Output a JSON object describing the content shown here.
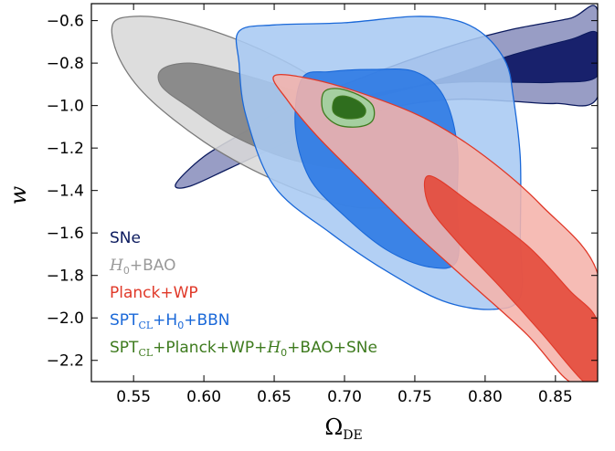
{
  "chart_data": {
    "type": "contour",
    "title": "",
    "xlabel": "Ω",
    "xlabel_sub": "DE",
    "ylabel": "w",
    "xlim": [
      0.52,
      0.88
    ],
    "ylim": [
      -2.3,
      -0.52
    ],
    "x_ticks": [
      0.55,
      0.6,
      0.65,
      0.7,
      0.75,
      0.8,
      0.85
    ],
    "x_tick_labels": [
      "0.55",
      "0.60",
      "0.65",
      "0.70",
      "0.75",
      "0.80",
      "0.85"
    ],
    "y_ticks": [
      -0.6,
      -0.8,
      -1.0,
      -1.2,
      -1.4,
      -1.6,
      -1.8,
      -2.0,
      -2.2
    ],
    "y_tick_labels": [
      "−0.6",
      "−0.8",
      "−1.0",
      "−1.2",
      "−1.4",
      "−1.6",
      "−1.8",
      "−2.0",
      "−2.2"
    ],
    "grid": false,
    "legend_position": "bottom-left",
    "series": [
      {
        "name": "SNe",
        "color": "#0b1a5e",
        "fill_outer": "#8a90bd",
        "fill_inner": "#061060",
        "outer": [
          [
            0.58,
            -1.37
          ],
          [
            0.6,
            -1.24
          ],
          [
            0.63,
            -1.12
          ],
          [
            0.66,
            -1.0
          ],
          [
            0.7,
            -0.9
          ],
          [
            0.74,
            -0.8
          ],
          [
            0.78,
            -0.71
          ],
          [
            0.82,
            -0.64
          ],
          [
            0.86,
            -0.59
          ],
          [
            0.88,
            -0.55
          ],
          [
            0.88,
            -0.96
          ],
          [
            0.85,
            -0.99
          ],
          [
            0.82,
            -0.98
          ],
          [
            0.78,
            -0.97
          ],
          [
            0.74,
            -1.0
          ],
          [
            0.7,
            -1.07
          ],
          [
            0.66,
            -1.17
          ],
          [
            0.62,
            -1.29
          ],
          [
            0.59,
            -1.38
          ]
        ],
        "inner": [
          [
            0.67,
            -1.05
          ],
          [
            0.7,
            -0.99
          ],
          [
            0.74,
            -0.93
          ],
          [
            0.78,
            -0.85
          ],
          [
            0.82,
            -0.76
          ],
          [
            0.86,
            -0.69
          ],
          [
            0.88,
            -0.66
          ],
          [
            0.88,
            -0.86
          ],
          [
            0.85,
            -0.89
          ],
          [
            0.82,
            -0.89
          ],
          [
            0.78,
            -0.89
          ],
          [
            0.74,
            -0.92
          ],
          [
            0.7,
            -0.98
          ],
          [
            0.67,
            -1.05
          ]
        ]
      },
      {
        "name": "H0+BAO",
        "label_parts": [
          "H",
          "0",
          "+BAO"
        ],
        "color": "#7a7a7a",
        "fill_outer": "#d8d8d8",
        "fill_inner": "#808080",
        "outer": [
          [
            0.535,
            -0.62
          ],
          [
            0.55,
            -0.58
          ],
          [
            0.58,
            -0.6
          ],
          [
            0.62,
            -0.68
          ],
          [
            0.66,
            -0.8
          ],
          [
            0.7,
            -0.96
          ],
          [
            0.73,
            -1.1
          ],
          [
            0.755,
            -1.25
          ],
          [
            0.755,
            -1.4
          ],
          [
            0.74,
            -1.47
          ],
          [
            0.71,
            -1.48
          ],
          [
            0.68,
            -1.43
          ],
          [
            0.64,
            -1.32
          ],
          [
            0.6,
            -1.17
          ],
          [
            0.56,
            -0.96
          ],
          [
            0.54,
            -0.78
          ]
        ],
        "inner": [
          [
            0.57,
            -0.83
          ],
          [
            0.59,
            -0.8
          ],
          [
            0.62,
            -0.84
          ],
          [
            0.66,
            -0.92
          ],
          [
            0.7,
            -1.02
          ],
          [
            0.73,
            -1.13
          ],
          [
            0.74,
            -1.24
          ],
          [
            0.73,
            -1.3
          ],
          [
            0.7,
            -1.3
          ],
          [
            0.66,
            -1.25
          ],
          [
            0.62,
            -1.14
          ],
          [
            0.59,
            -1.01
          ],
          [
            0.57,
            -0.91
          ]
        ]
      },
      {
        "name": "Planck+WP",
        "color": "#e03828",
        "fill_outer": "#f5b3ab",
        "fill_inner": "#e44838",
        "outer": [
          [
            0.65,
            -0.86
          ],
          [
            0.68,
            -0.88
          ],
          [
            0.72,
            -0.96
          ],
          [
            0.76,
            -1.07
          ],
          [
            0.8,
            -1.24
          ],
          [
            0.84,
            -1.47
          ],
          [
            0.88,
            -1.79
          ],
          [
            0.88,
            -2.3
          ],
          [
            0.86,
            -2.3
          ],
          [
            0.83,
            -2.08
          ],
          [
            0.79,
            -1.84
          ],
          [
            0.75,
            -1.6
          ],
          [
            0.71,
            -1.34
          ],
          [
            0.68,
            -1.14
          ],
          [
            0.66,
            -0.98
          ]
        ],
        "inner": [
          [
            0.76,
            -1.33
          ],
          [
            0.79,
            -1.46
          ],
          [
            0.83,
            -1.66
          ],
          [
            0.86,
            -1.87
          ],
          [
            0.88,
            -2.02
          ],
          [
            0.88,
            -2.3
          ],
          [
            0.87,
            -2.3
          ],
          [
            0.84,
            -2.07
          ],
          [
            0.81,
            -1.85
          ],
          [
            0.78,
            -1.64
          ],
          [
            0.76,
            -1.47
          ]
        ]
      },
      {
        "name": "SPTCL+H0+BBN",
        "label_parts": [
          "SPT",
          "CL",
          "+H",
          "0",
          "+BBN"
        ],
        "color": "#1a68d8",
        "fill_outer": "#a8c9f3",
        "fill_inner": "#2a78e4",
        "outer": [
          [
            0.625,
            -0.65
          ],
          [
            0.65,
            -0.62
          ],
          [
            0.7,
            -0.61
          ],
          [
            0.75,
            -0.58
          ],
          [
            0.78,
            -0.6
          ],
          [
            0.8,
            -0.67
          ],
          [
            0.815,
            -0.8
          ],
          [
            0.82,
            -0.96
          ],
          [
            0.825,
            -1.25
          ],
          [
            0.825,
            -1.62
          ],
          [
            0.825,
            -1.9
          ],
          [
            0.805,
            -1.96
          ],
          [
            0.77,
            -1.92
          ],
          [
            0.73,
            -1.78
          ],
          [
            0.69,
            -1.6
          ],
          [
            0.65,
            -1.38
          ],
          [
            0.63,
            -1.05
          ],
          [
            0.625,
            -0.8
          ]
        ],
        "inner": [
          [
            0.67,
            -0.87
          ],
          [
            0.69,
            -0.84
          ],
          [
            0.72,
            -0.83
          ],
          [
            0.75,
            -0.84
          ],
          [
            0.77,
            -0.95
          ],
          [
            0.78,
            -1.18
          ],
          [
            0.78,
            -1.47
          ],
          [
            0.78,
            -1.73
          ],
          [
            0.76,
            -1.76
          ],
          [
            0.73,
            -1.68
          ],
          [
            0.7,
            -1.52
          ],
          [
            0.675,
            -1.34
          ],
          [
            0.665,
            -1.1
          ]
        ]
      },
      {
        "name": "SPTCL+Planck+WP+H0+BAO+SNe",
        "label_parts": [
          "SPT",
          "CL",
          "+Planck+WP+",
          "H",
          "0",
          "+BAO+SNe"
        ],
        "color": "#3e7b1e",
        "fill_outer": "#a5cfa0",
        "fill_inner": "#2f6e1e",
        "outer": [
          [
            0.685,
            -0.94
          ],
          [
            0.695,
            -0.92
          ],
          [
            0.71,
            -0.95
          ],
          [
            0.72,
            -1.0
          ],
          [
            0.72,
            -1.07
          ],
          [
            0.71,
            -1.1
          ],
          [
            0.695,
            -1.09
          ],
          [
            0.685,
            -1.03
          ]
        ],
        "inner": [
          [
            0.693,
            -0.97
          ],
          [
            0.7,
            -0.955
          ],
          [
            0.71,
            -0.98
          ],
          [
            0.715,
            -1.02
          ],
          [
            0.712,
            -1.055
          ],
          [
            0.7,
            -1.06
          ],
          [
            0.692,
            -1.03
          ]
        ]
      }
    ]
  }
}
